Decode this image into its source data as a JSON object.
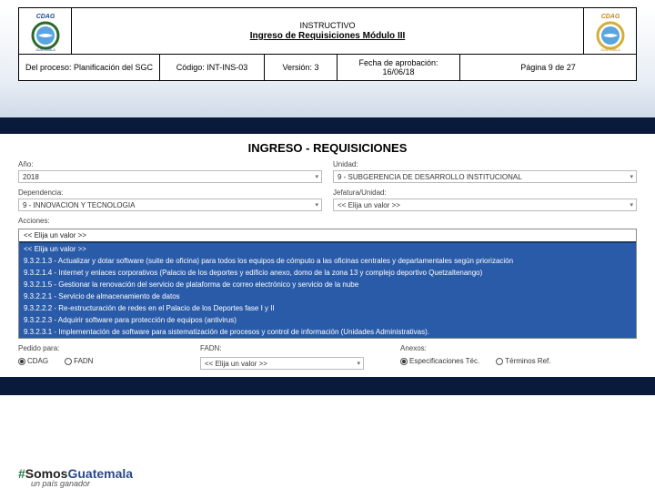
{
  "header": {
    "line1": "INSTRUCTIVO",
    "line2": "Ingreso de Requisiciones Módulo III",
    "cells": {
      "proceso": "Del proceso: Planificación del SGC",
      "codigo": "Código: INT-INS-03",
      "version": "Versión: 3",
      "fecha": "Fecha de aprobación: 16/06/18",
      "pagina": "Página 9 de 27"
    },
    "logo_colors": {
      "ring": "#2a6a2a",
      "center": "#5aa5e0",
      "text": "#1a4a8a",
      "gold": "#d4af37"
    }
  },
  "page_title": "INGRESO - REQUISICIONES",
  "form": {
    "ano": {
      "label": "Año:",
      "value": "2018"
    },
    "unidad": {
      "label": "Unidad:",
      "value": "9 - SUBGERENCIA DE DESARROLLO INSTITUCIONAL"
    },
    "dependencia": {
      "label": "Dependencia:",
      "value": "9 - INNOVACION Y TECNOLOGIA"
    },
    "jefatura": {
      "label": "Jefatura/Unidad:",
      "value": "<< Elija un valor >>"
    },
    "acciones_label": "Acciones:"
  },
  "dropdown": {
    "items": [
      {
        "text": "<< Elija un valor >>",
        "hl": false
      },
      {
        "text": "<< Elija un valor >>",
        "hl": true
      },
      {
        "text": "9.3.2.1.3 - Actualizar y dotar software (suite de oficina) para todos los equipos de cómputo a las oficinas centrales y departamentales según priorización",
        "hl": true
      },
      {
        "text": "9.3.2.1.4 - Internet y enlaces corporativos (Palacio de los deportes y edificio anexo, domo de la zona 13 y complejo deportivo Quetzaltenango)",
        "hl": true
      },
      {
        "text": "9.3.2.1.5 - Gestionar la renovación del servicio de plataforma de correo electrónico y servicio de la nube",
        "hl": true
      },
      {
        "text": "9.3.2.2.1 - Servicio de almacenamiento de datos",
        "hl": true
      },
      {
        "text": "9.3.2.2.2 - Re-estructuración de redes en el Palacio de los Deportes fase I y II",
        "hl": true
      },
      {
        "text": "9.3.2.2.3 - Adquirir software para protección de equipos (antivirus)",
        "hl": true
      },
      {
        "text": "9.3.2.3.1 - Implementación de software para sistematización de procesos y control de información (Unidades Administrativas).",
        "hl": true
      }
    ]
  },
  "radios": {
    "pedido": {
      "label": "Pedido para:",
      "opts": [
        {
          "label": "CDAG",
          "on": true
        },
        {
          "label": "FADN",
          "on": false
        }
      ]
    },
    "fadn": {
      "label": "FADN:",
      "value": "<< Elija un valor >>"
    },
    "anexos": {
      "label": "Anexos:",
      "opts": [
        {
          "label": "Especificaciones Téc.",
          "on": true
        },
        {
          "label": "Términos Ref.",
          "on": false
        }
      ]
    }
  },
  "footer": {
    "hash": "#",
    "somos": "Somos",
    "gua": "Guatemala",
    "sub": "un país ganador"
  }
}
